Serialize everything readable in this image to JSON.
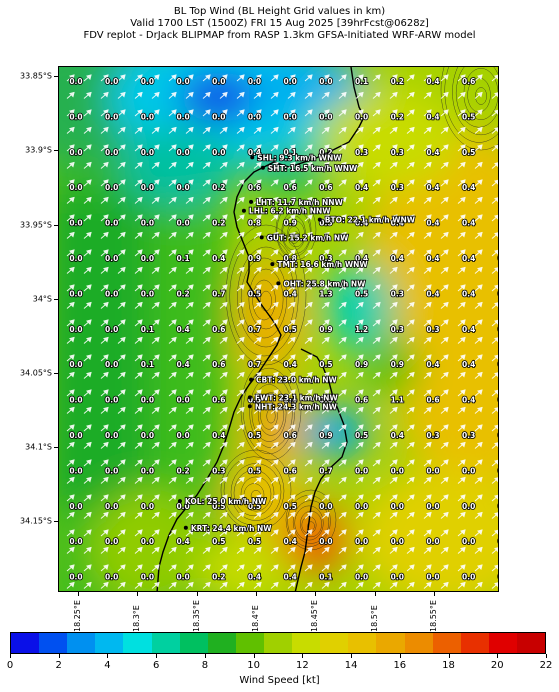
{
  "title": {
    "line1": "BL Top Wind (BL Height Grid values in km)",
    "line2": "Valid 1700 LST (1500Z) FRI 15 Aug 2025 [39hrFcst@0628z]",
    "line3": "FDV replot - DrJack BLIPMAP from RASP 1.3km GFSA-Initiated WRF-ARW model"
  },
  "y_axis_labels": [
    "33.85°S",
    "33.9°S",
    "33.95°S",
    "34°S",
    "34.05°S",
    "34.1°S",
    "34.15°S"
  ],
  "x_axis_labels": [
    "18.25°E",
    "18.3°E",
    "18.35°E",
    "18.4°E",
    "18.45°E",
    "18.5°E",
    "18.55°E"
  ],
  "grid_values": [
    [
      "0.0",
      "0.0",
      "0.0",
      "0.0",
      "0.0",
      "0.0",
      "0.0",
      "0.0",
      "0.1",
      "0.2",
      "0.4",
      "0.6",
      ""
    ],
    [
      "0.0",
      "0.0",
      "0.0",
      "0.0",
      "0.0",
      "0.0",
      "0.0",
      "0.0",
      "0.0",
      "0.2",
      "0.4",
      "0.5",
      ""
    ],
    [
      "0.0",
      "0.0",
      "0.0",
      "0.0",
      "0.0",
      "0.4",
      "0.1",
      "0.2",
      "0.3",
      "0.3",
      "0.4",
      "0.5",
      ""
    ],
    [
      "0.0",
      "0.0",
      "0.0",
      "0.0",
      "0.2",
      "0.6",
      "0.6",
      "0.6",
      "0.4",
      "0.3",
      "0.4",
      "0.4",
      ""
    ],
    [
      "0.0",
      "0.0",
      "0.0",
      "0.0",
      "0.2",
      "0.8",
      "0.9",
      "0.5",
      "0.4",
      "0.4",
      "0.4",
      "0.4",
      ""
    ],
    [
      "0.0",
      "0.0",
      "0.0",
      "0.1",
      "0.4",
      "0.9",
      "0.8",
      "0.3",
      "0.4",
      "0.4",
      "0.4",
      "0.4",
      "0.4"
    ],
    [
      "0.0",
      "0.0",
      "0.0",
      "0.2",
      "0.7",
      "0.5",
      "0.4",
      "1.3",
      "0.5",
      "0.3",
      "0.4",
      "0.4",
      "0.4"
    ],
    [
      "0.0",
      "0.0",
      "0.1",
      "0.4",
      "0.6",
      "0.7",
      "0.5",
      "0.9",
      "1.2",
      "0.3",
      "0.3",
      "0.4",
      "0.4"
    ],
    [
      "0.0",
      "0.0",
      "0.1",
      "0.4",
      "0.6",
      "0.7",
      "0.4",
      "0.5",
      "0.9",
      "0.9",
      "0.4",
      "0.4",
      "0.4"
    ],
    [
      "0.0",
      "0.0",
      "0.0",
      "0.0",
      "0.6",
      "0.5",
      "0.4",
      "0.6",
      "0.6",
      "1.1",
      "0.6",
      "0.4",
      "0.4"
    ],
    [
      "0.0",
      "0.0",
      "0.0",
      "0.0",
      "0.4",
      "0.5",
      "0.6",
      "0.9",
      "0.5",
      "0.4",
      "0.3",
      "0.3",
      "0.0"
    ],
    [
      "0.0",
      "0.0",
      "0.0",
      "0.2",
      "0.3",
      "0.5",
      "0.6",
      "0.7",
      "0.0",
      "0.0",
      "0.0",
      "0.0",
      "0.0"
    ],
    [
      "0.0",
      "0.0",
      "0.0",
      "0.0",
      "0.5",
      "0.5",
      "0.5",
      "0.0",
      "0.0",
      "0.0",
      "0.0",
      "0.0",
      "0.0"
    ],
    [
      "0.0",
      "0.0",
      "0.0",
      "0.4",
      "0.5",
      "0.5",
      "0.4",
      "0.0",
      "0.0",
      "0.0",
      "0.0",
      "0.0",
      "0.0"
    ],
    [
      "0.0",
      "0.0",
      "0.0",
      "0.0",
      "0.2",
      "0.4",
      "0.4",
      "0.1",
      "0.0",
      "0.0",
      "0.0",
      "0.0",
      "0.0"
    ]
  ],
  "stations": [
    {
      "label": "SHL: 9.3 km/h WNW",
      "lon": 18.396,
      "lat": -33.904
    },
    {
      "label": "SHT: 16.5 km/h WNW",
      "lon": 18.405,
      "lat": -33.911
    },
    {
      "label": "LHT: 11.7 km/h NNW",
      "lon": 18.395,
      "lat": -33.934
    },
    {
      "label": "LHL: 6.2 km/h NNW",
      "lon": 18.389,
      "lat": -33.94
    },
    {
      "label": "BTO: 22.1 km/h WNW",
      "lon": 18.453,
      "lat": -33.946
    },
    {
      "label": "GUT: 15.2 km/h NW",
      "lon": 18.404,
      "lat": -33.958
    },
    {
      "label": "TMT: 16.6 km/h WNW",
      "lon": 18.413,
      "lat": -33.976
    },
    {
      "label": "OHT: 25.8 km/h NW",
      "lon": 18.418,
      "lat": -33.989
    },
    {
      "label": "CBT: 23.0 km/h NW",
      "lon": 18.395,
      "lat": -34.054
    },
    {
      "label": "FWT: 23.1 km/h NW",
      "lon": 18.394,
      "lat": -34.066
    },
    {
      "label": "NHT: 24.3 km/h NW",
      "lon": 18.394,
      "lat": -34.072
    },
    {
      "label": "KOL: 25.0 km/h NW",
      "lon": 18.335,
      "lat": -34.136
    },
    {
      "label": "KRT: 24.4 km/h NW",
      "lon": 18.34,
      "lat": -34.154
    }
  ],
  "colorbar": {
    "label": "Wind Speed [kt]",
    "ticks": [
      "0",
      "2",
      "4",
      "6",
      "8",
      "10",
      "12",
      "14",
      "16",
      "18",
      "20",
      "22"
    ],
    "colors": [
      "#0a10e8",
      "#0050f0",
      "#0090f0",
      "#00b8f0",
      "#00e0e0",
      "#00d0a0",
      "#00c060",
      "#20b020",
      "#60c000",
      "#a0d000",
      "#c8dc00",
      "#e0d000",
      "#e8c000",
      "#eaa800",
      "#ec8c00",
      "#ec6000",
      "#e83000",
      "#e00000",
      "#c80000"
    ]
  },
  "extent": {
    "lon_min": 18.233,
    "lon_max": 18.605,
    "lat_max": -33.843,
    "lat_min": -34.198
  }
}
